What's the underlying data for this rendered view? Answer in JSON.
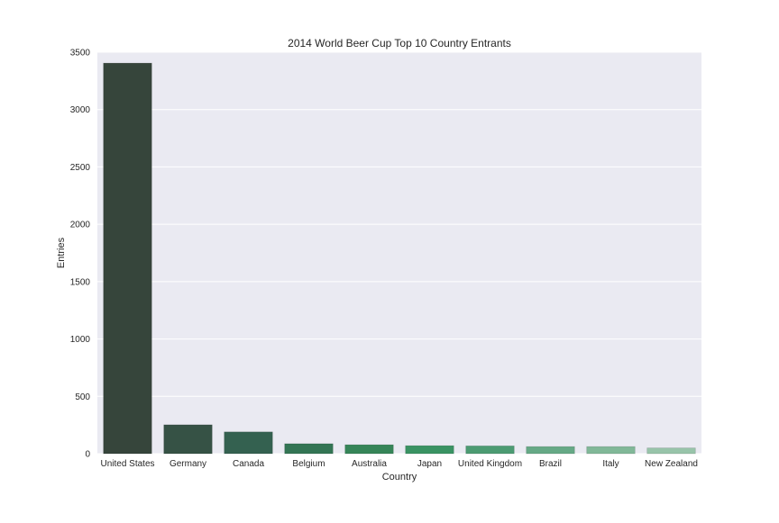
{
  "chart_data": {
    "type": "bar",
    "title": "2014 World Beer Cup Top 10 Country Entrants",
    "xlabel": "Country",
    "ylabel": "Entries",
    "categories": [
      "United States",
      "Germany",
      "Canada",
      "Belgium",
      "Australia",
      "Japan",
      "United Kingdom",
      "Brazil",
      "Italy",
      "New Zealand"
    ],
    "values": [
      3405,
      252,
      190,
      87,
      78,
      70,
      68,
      62,
      62,
      50
    ],
    "ylim": [
      0,
      3500
    ],
    "yticks": [
      0,
      500,
      1000,
      1500,
      2000,
      2500,
      3000,
      3500
    ],
    "grid": true,
    "legend": "none",
    "colors": [
      "#36453b",
      "#365245",
      "#346150",
      "#337554",
      "#368558",
      "#3a9363",
      "#4c9b72",
      "#66a986",
      "#81b898",
      "#98c4aa"
    ],
    "background": "#eaeaf2",
    "gridline_color": "#ffffff"
  }
}
